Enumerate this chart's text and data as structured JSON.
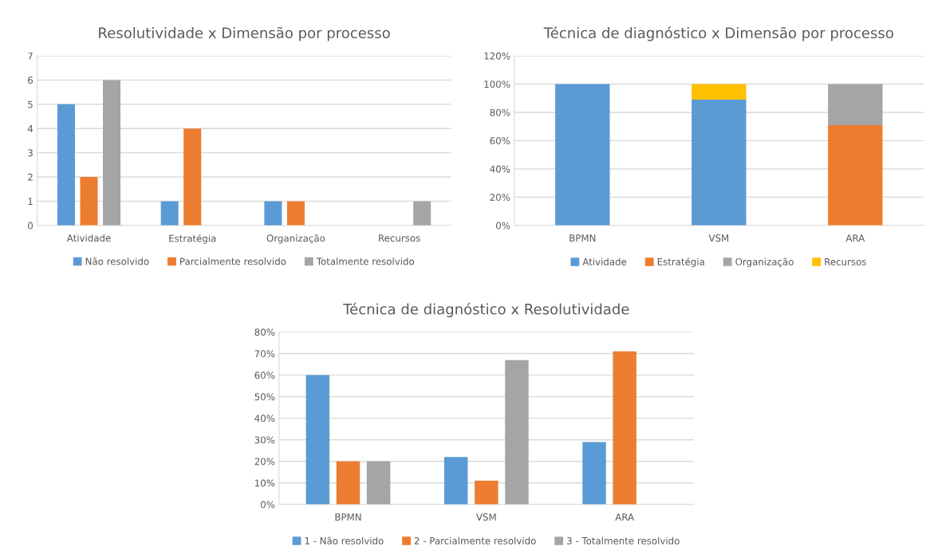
{
  "chart_data": [
    {
      "type": "bar",
      "title": "Resolutividade x Dimensão por processo",
      "categories": [
        "Atividade",
        "Estratégia",
        "Organização",
        "Recursos"
      ],
      "series": [
        {
          "name": "Não resolvido",
          "color": "#5b9bd5",
          "values": [
            5,
            1,
            1,
            null
          ]
        },
        {
          "name": "Parcialmente resolvido",
          "color": "#ed7d31",
          "values": [
            2,
            4,
            1,
            null
          ]
        },
        {
          "name": "Totalmente resolvido",
          "color": "#a5a5a5",
          "values": [
            6,
            null,
            null,
            1
          ]
        }
      ],
      "ylim": [
        0,
        7
      ],
      "yticks": [
        0,
        1,
        2,
        3,
        4,
        5,
        6,
        7
      ],
      "grid": "y",
      "legend": "bottom"
    },
    {
      "type": "bar",
      "stacked": true,
      "title": "Técnica de diagnóstico x Dimensão por processo",
      "categories": [
        "BPMN",
        "VSM",
        "ARA"
      ],
      "series": [
        {
          "name": "Atividade",
          "color": "#5b9bd5",
          "values": [
            100,
            89,
            null
          ]
        },
        {
          "name": "Estratégia",
          "color": "#ed7d31",
          "values": [
            null,
            null,
            71
          ]
        },
        {
          "name": "Organização",
          "color": "#a5a5a5",
          "values": [
            null,
            null,
            29
          ]
        },
        {
          "name": "Recursos",
          "color": "#ffc000",
          "values": [
            null,
            11,
            null
          ]
        }
      ],
      "ylim": [
        0,
        120
      ],
      "yticks": [
        {
          "value": 0,
          "label": "0%"
        },
        {
          "value": 20,
          "label": "20%"
        },
        {
          "value": 40,
          "label": "40%"
        },
        {
          "value": 60,
          "label": "60%"
        },
        {
          "value": 80,
          "label": "80%"
        },
        {
          "value": 100,
          "label": "100%"
        },
        {
          "value": 120,
          "label": "120%"
        }
      ],
      "grid": "y",
      "legend": "bottom"
    },
    {
      "type": "bar",
      "title": "Técnica de diagnóstico x Resolutividade",
      "categories": [
        "BPMN",
        "VSM",
        "ARA"
      ],
      "series": [
        {
          "name": "1 - Não resolvido",
          "color": "#5b9bd5",
          "values": [
            60,
            22,
            29
          ]
        },
        {
          "name": "2 - Parcialmente resolvido",
          "color": "#ed7d31",
          "values": [
            20,
            11,
            71
          ]
        },
        {
          "name": "3 - Totalmente resolvido",
          "color": "#a5a5a5",
          "values": [
            20,
            67,
            null
          ]
        }
      ],
      "ylim": [
        0,
        80
      ],
      "yticks": [
        {
          "value": 0,
          "label": "0%"
        },
        {
          "value": 10,
          "label": "10%"
        },
        {
          "value": 20,
          "label": "20%"
        },
        {
          "value": 30,
          "label": "30%"
        },
        {
          "value": 40,
          "label": "40%"
        },
        {
          "value": 50,
          "label": "50%"
        },
        {
          "value": 60,
          "label": "60%"
        },
        {
          "value": 70,
          "label": "70%"
        },
        {
          "value": 80,
          "label": "80%"
        }
      ],
      "grid": "y",
      "legend": "bottom"
    }
  ]
}
